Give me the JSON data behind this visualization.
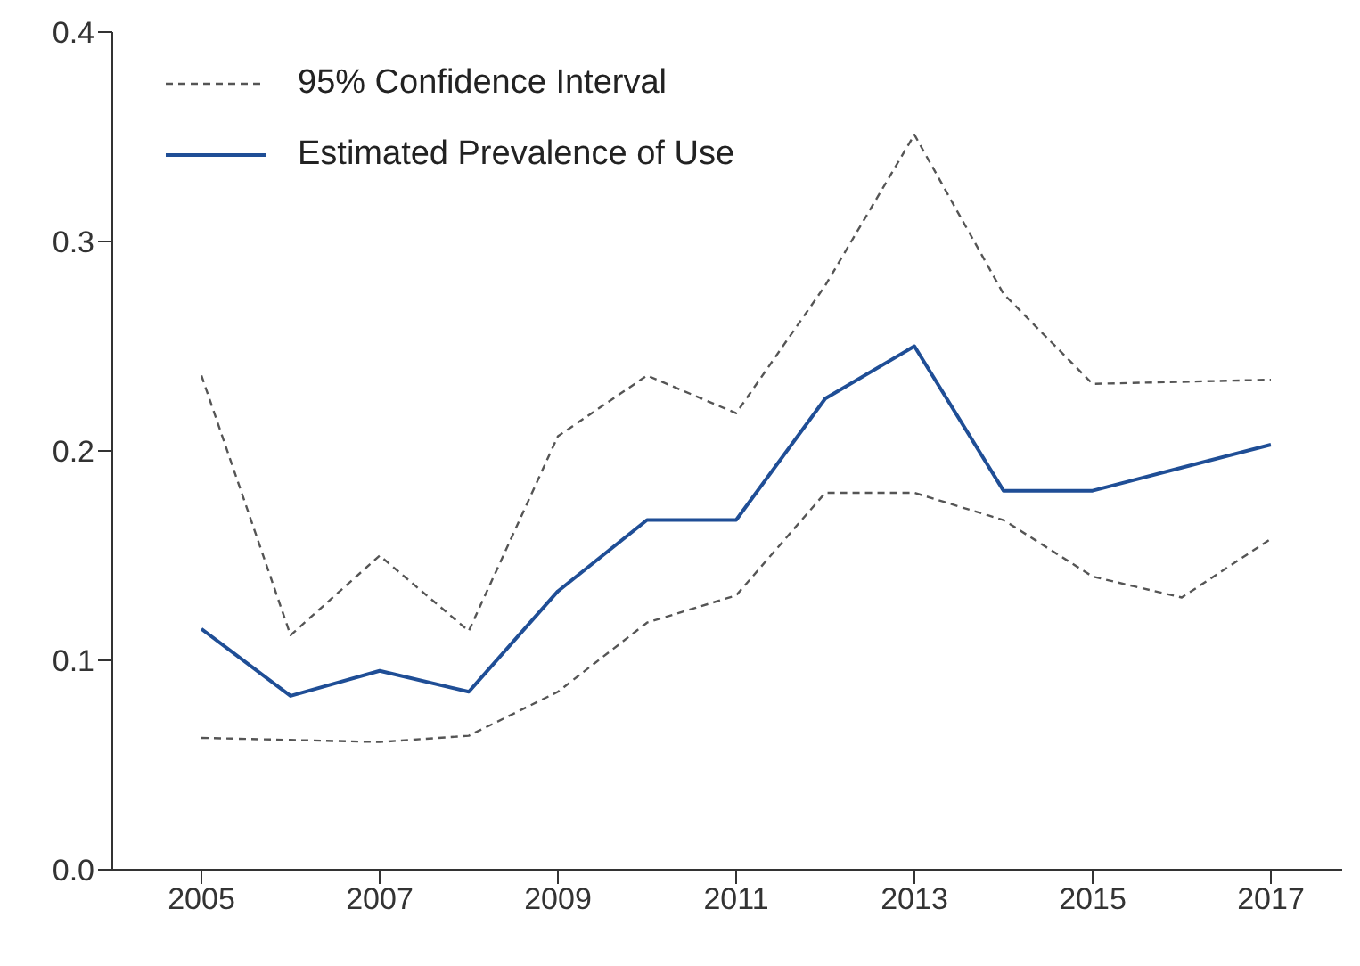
{
  "chart_data": {
    "type": "line",
    "x": [
      2005,
      2006,
      2007,
      2008,
      2009,
      2010,
      2011,
      2012,
      2013,
      2014,
      2015,
      2016,
      2017
    ],
    "series": [
      {
        "name": "95% Confidence Interval",
        "color": "#555555",
        "line_style": "dashed",
        "values": [
          0.236,
          0.112,
          0.15,
          0.114,
          0.207,
          0.236,
          0.218,
          0.279,
          0.351,
          0.275,
          0.232,
          0.233,
          0.234
        ]
      },
      {
        "color": "#555555",
        "line_style": "dashed",
        "values": [
          0.063,
          0.062,
          0.061,
          0.064,
          0.085,
          0.118,
          0.131,
          0.18,
          0.18,
          0.167,
          0.14,
          0.13,
          0.158
        ]
      },
      {
        "name": "Estimated Prevalence of Use",
        "color": "#1f4e96",
        "line_style": "solid",
        "values": [
          0.115,
          0.083,
          0.095,
          0.085,
          0.133,
          0.167,
          0.167,
          0.225,
          0.25,
          0.181,
          0.181,
          0.192,
          0.203
        ]
      }
    ],
    "xlim": [
      2004,
      2017.8
    ],
    "xticks": [
      2005,
      2007,
      2009,
      2011,
      2013,
      2015,
      2017
    ],
    "ylim": [
      0,
      0.4
    ],
    "yticks": [
      {
        "value": 0,
        "label": "0.0"
      },
      {
        "value": 0.1,
        "label": "0.1"
      },
      {
        "value": 0.2,
        "label": "0.2"
      },
      {
        "value": 0.3,
        "label": "0.3"
      },
      {
        "value": 0.4,
        "label": "0.4"
      }
    ],
    "grid": false,
    "legend": "top left",
    "marker": "none"
  }
}
